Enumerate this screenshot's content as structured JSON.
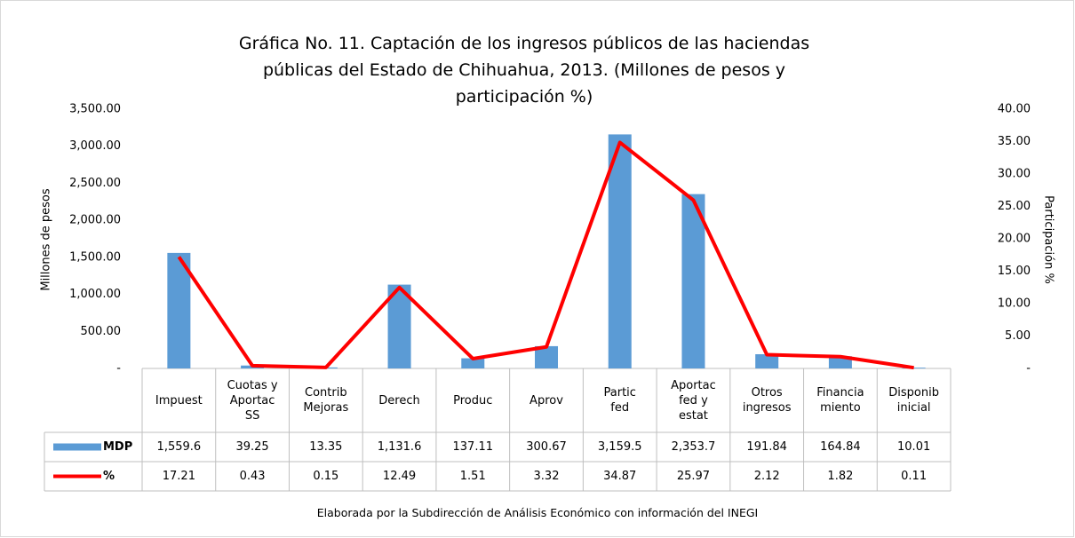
{
  "chart_data": {
    "type": "bar_line_table",
    "title": "Gráfica No.  11. Captación de los ingresos públicos de las haciendas públicas del Estado de Chihuahua, 2013. (Millones de pesos y participación %)",
    "categories": [
      "Impuest",
      "Cuotas y\nAportac\nSS",
      "Contrib\nMejoras",
      "Derech",
      "Produc",
      "Aprov",
      "Partic\nfed",
      "Aportac\nfed y\nestat",
      "Otros\ningresos",
      "Financia\nmiento",
      "Disponib\ninicial"
    ],
    "series": [
      {
        "name": "MDP",
        "type": "bar",
        "color": "#5b9bd5",
        "values": [
          1559.6,
          39.25,
          13.35,
          1131.6,
          137.11,
          300.67,
          3159.5,
          2353.7,
          191.84,
          164.84,
          10.01
        ],
        "value_labels": [
          "1,559.6",
          "39.25",
          "13.35",
          "1,131.6",
          "137.11",
          "300.67",
          "3,159.5",
          "2,353.7",
          "191.84",
          "164.84",
          "10.01"
        ]
      },
      {
        "name": "%",
        "type": "line",
        "axis": "y2",
        "color": "#ff0000",
        "values": [
          17.21,
          0.43,
          0.15,
          12.49,
          1.51,
          3.32,
          34.87,
          25.97,
          2.12,
          1.82,
          0.11
        ]
      }
    ],
    "ylabel": "Millones de pesos",
    "y2label": "Participación %",
    "ylim": [
      0,
      3500
    ],
    "yticks": [
      {
        "value": 0,
        "label": "-"
      },
      {
        "value": 500,
        "label": "500.00"
      },
      {
        "value": 1000,
        "label": "1,000.00"
      },
      {
        "value": 1500,
        "label": "1,500.00"
      },
      {
        "value": 2000,
        "label": "2,000.00"
      },
      {
        "value": 2500,
        "label": "2,500.00"
      },
      {
        "value": 3000,
        "label": "3,000.00"
      },
      {
        "value": 3500,
        "label": "3,500.00"
      }
    ],
    "y2lim": [
      0,
      40
    ],
    "y2ticks": [
      {
        "value": 0,
        "label": "-"
      },
      {
        "value": 5,
        "label": "5.00"
      },
      {
        "value": 10,
        "label": "10.00"
      },
      {
        "value": 15,
        "label": "15.00"
      },
      {
        "value": 20,
        "label": "20.00"
      },
      {
        "value": 25,
        "label": "25.00"
      },
      {
        "value": 30,
        "label": "30.00"
      },
      {
        "value": 35,
        "label": "35.00"
      },
      {
        "value": 40,
        "label": "40.00"
      }
    ],
    "grid": false,
    "footnote": "Elaborada por la Subdirección de Análisis Económico con información del INEGI"
  }
}
